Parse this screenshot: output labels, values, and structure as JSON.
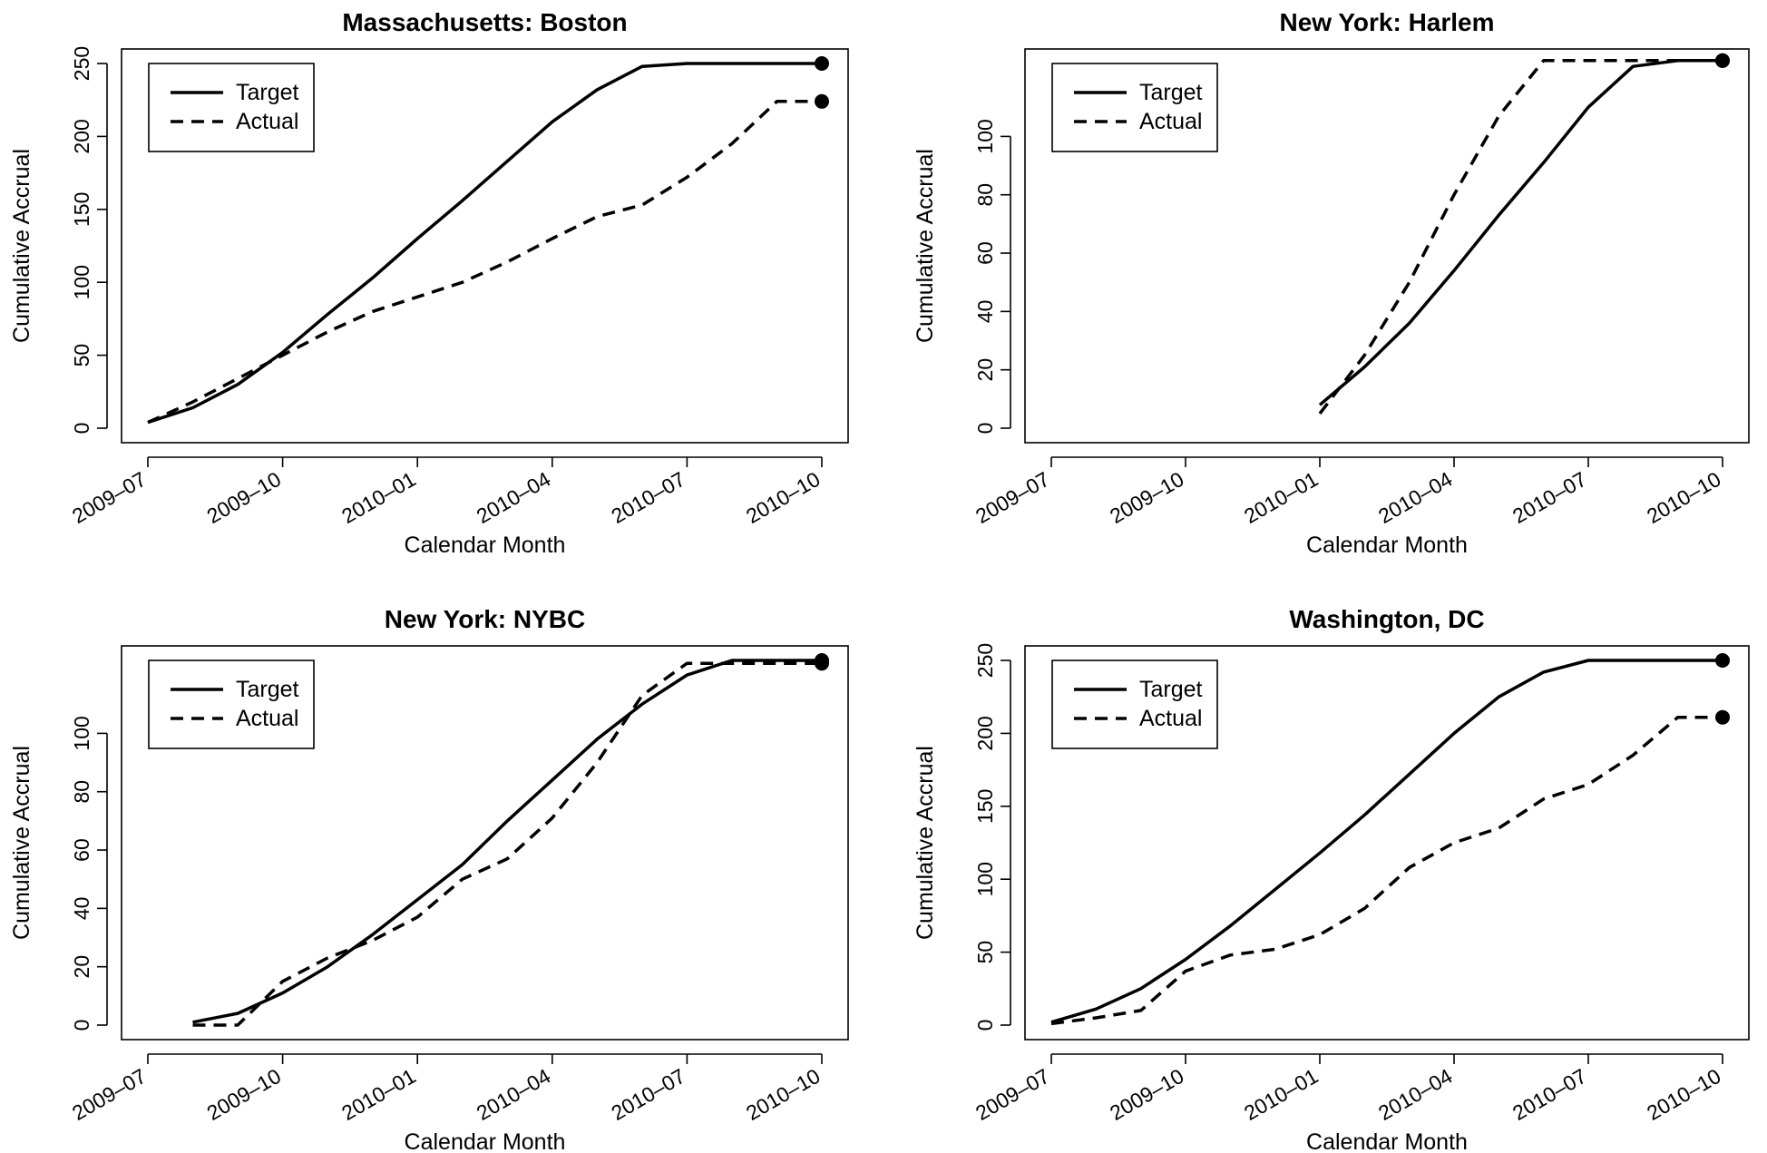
{
  "chart_data": [
    {
      "type": "line",
      "title": "Massachusetts: Boston",
      "xlabel": "Calendar Month",
      "ylabel": "Cumulative Accrual",
      "x_ticks": [
        "2009–07",
        "2009–10",
        "2010–01",
        "2010–04",
        "2010–07",
        "2010–10"
      ],
      "y_ticks": [
        0,
        50,
        100,
        150,
        200,
        250
      ],
      "xlim": [
        "2009-07",
        "2010-10"
      ],
      "ylim": [
        0,
        250
      ],
      "legend": "top-left",
      "series": [
        {
          "name": "Target",
          "style": "solid",
          "x": [
            "2009-07",
            "2009-08",
            "2009-09",
            "2009-10",
            "2009-11",
            "2009-12",
            "2010-01",
            "2010-02",
            "2010-03",
            "2010-04",
            "2010-05",
            "2010-06",
            "2010-07",
            "2010-08",
            "2010-09",
            "2010-10"
          ],
          "values": [
            4,
            14,
            30,
            52,
            78,
            103,
            130,
            156,
            183,
            210,
            232,
            248,
            250,
            250,
            250,
            250
          ]
        },
        {
          "name": "Actual",
          "style": "dashed",
          "x": [
            "2009-07",
            "2009-08",
            "2009-09",
            "2009-10",
            "2009-11",
            "2009-12",
            "2010-01",
            "2010-02",
            "2010-03",
            "2010-04",
            "2010-05",
            "2010-06",
            "2010-07",
            "2010-08",
            "2010-09",
            "2010-10"
          ],
          "values": [
            4,
            18,
            34,
            50,
            66,
            80,
            90,
            100,
            114,
            130,
            145,
            153,
            172,
            195,
            224,
            224
          ]
        }
      ],
      "end_points": [
        250,
        224
      ]
    },
    {
      "type": "line",
      "title": "New York: Harlem",
      "xlabel": "Calendar Month",
      "ylabel": "Cumulative Accrual",
      "x_ticks": [
        "2009–07",
        "2009–10",
        "2010–01",
        "2010–04",
        "2010–07",
        "2010–10"
      ],
      "y_ticks": [
        0,
        20,
        40,
        60,
        80,
        100
      ],
      "xlim": [
        "2009-07",
        "2010-10"
      ],
      "ylim": [
        0,
        125
      ],
      "legend": "top-left",
      "series": [
        {
          "name": "Target",
          "style": "solid",
          "x": [
            "2010-01",
            "2010-02",
            "2010-03",
            "2010-04",
            "2010-05",
            "2010-06",
            "2010-07",
            "2010-08",
            "2010-09",
            "2010-10"
          ],
          "values": [
            8,
            21,
            36,
            54,
            73,
            91,
            110,
            124,
            126,
            126
          ]
        },
        {
          "name": "Actual",
          "style": "dashed",
          "x": [
            "2010-01",
            "2010-02",
            "2010-03",
            "2010-04",
            "2010-05",
            "2010-06",
            "2010-07",
            "2010-08",
            "2010-09",
            "2010-10"
          ],
          "values": [
            5,
            25,
            50,
            80,
            107,
            126,
            126,
            126,
            126,
            126
          ]
        }
      ],
      "end_points": [
        126,
        126
      ]
    },
    {
      "type": "line",
      "title": "New York: NYBC",
      "xlabel": "Calendar Month",
      "ylabel": "Cumulative Accrual",
      "x_ticks": [
        "2009–07",
        "2009–10",
        "2010–01",
        "2010–04",
        "2010–07",
        "2010–10"
      ],
      "y_ticks": [
        0,
        20,
        40,
        60,
        80,
        100
      ],
      "xlim": [
        "2009-07",
        "2010-10"
      ],
      "ylim": [
        0,
        125
      ],
      "legend": "top-left",
      "series": [
        {
          "name": "Target",
          "style": "solid",
          "x": [
            "2009-08",
            "2009-09",
            "2009-10",
            "2009-11",
            "2009-12",
            "2010-01",
            "2010-02",
            "2010-03",
            "2010-04",
            "2010-05",
            "2010-06",
            "2010-07",
            "2010-08",
            "2010-09",
            "2010-10"
          ],
          "values": [
            1,
            4,
            11,
            20,
            31,
            43,
            55,
            70,
            84,
            98,
            110,
            120,
            125,
            125,
            125
          ]
        },
        {
          "name": "Actual",
          "style": "dashed",
          "x": [
            "2009-08",
            "2009-09",
            "2009-10",
            "2009-11",
            "2009-12",
            "2010-01",
            "2010-02",
            "2010-03",
            "2010-04",
            "2010-05",
            "2010-06",
            "2010-07",
            "2010-08",
            "2010-09",
            "2010-10"
          ],
          "values": [
            0,
            0,
            15,
            23,
            29,
            37,
            50,
            57,
            71,
            90,
            113,
            124,
            124,
            124,
            124
          ]
        }
      ],
      "end_points": [
        125,
        124
      ]
    },
    {
      "type": "line",
      "title": "Washington, DC",
      "xlabel": "Calendar Month",
      "ylabel": "Cumulative Accrual",
      "x_ticks": [
        "2009–07",
        "2009–10",
        "2010–01",
        "2010–04",
        "2010–07",
        "2010–10"
      ],
      "y_ticks": [
        0,
        50,
        100,
        150,
        200,
        250
      ],
      "xlim": [
        "2009-07",
        "2010-10"
      ],
      "ylim": [
        0,
        250
      ],
      "legend": "top-left",
      "series": [
        {
          "name": "Target",
          "style": "solid",
          "x": [
            "2009-07",
            "2009-08",
            "2009-09",
            "2009-10",
            "2009-11",
            "2009-12",
            "2010-01",
            "2010-02",
            "2010-03",
            "2010-04",
            "2010-05",
            "2010-06",
            "2010-07",
            "2010-08",
            "2010-09",
            "2010-10"
          ],
          "values": [
            2,
            11,
            25,
            45,
            68,
            93,
            118,
            144,
            172,
            200,
            225,
            242,
            250,
            250,
            250,
            250
          ]
        },
        {
          "name": "Actual",
          "style": "dashed",
          "x": [
            "2009-07",
            "2009-08",
            "2009-09",
            "2009-10",
            "2009-11",
            "2009-12",
            "2010-01",
            "2010-02",
            "2010-03",
            "2010-04",
            "2010-05",
            "2010-06",
            "2010-07",
            "2010-08",
            "2010-09",
            "2010-10"
          ],
          "values": [
            1,
            5,
            10,
            37,
            48,
            52,
            62,
            80,
            108,
            125,
            135,
            155,
            165,
            185,
            211,
            211
          ]
        }
      ],
      "end_points": [
        250,
        211
      ]
    }
  ]
}
